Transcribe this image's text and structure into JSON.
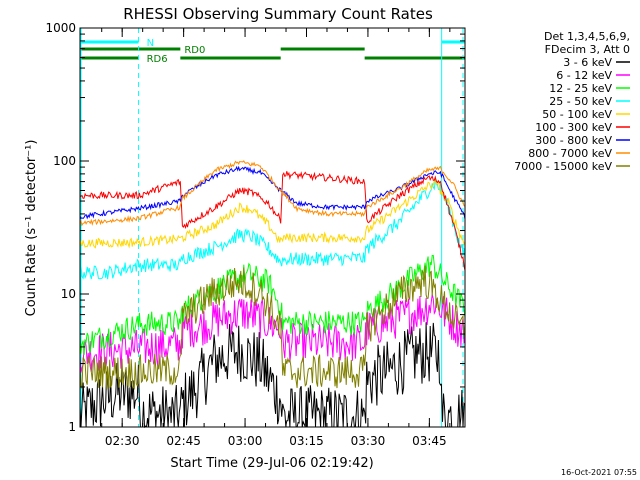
{
  "chart_data": {
    "type": "line",
    "title": "RHESSI Observing Summary Count Rates",
    "xlabel": "Start Time (29-Jul-06 02:19:42)",
    "ylabel": "Count Rate (s⁻¹ detector⁻¹)",
    "yscale": "log",
    "ylim": [
      1,
      1000
    ],
    "xlim_min": [
      0,
      94
    ],
    "y_ticks": [
      "1",
      "10",
      "100",
      "1000"
    ],
    "x_ticks": [
      {
        "min": 10.3,
        "label": "02:30"
      },
      {
        "min": 25.3,
        "label": "02:45"
      },
      {
        "min": 40.3,
        "label": "03:00"
      },
      {
        "min": 55.3,
        "label": "03:15"
      },
      {
        "min": 70.3,
        "label": "03:30"
      },
      {
        "min": 85.3,
        "label": "03:45"
      }
    ],
    "legend_header": [
      "Det 1,3,4,5,6,9,",
      "FDecim 3, Att 0"
    ],
    "night_lines_min": [
      0,
      88.3
    ],
    "saa_lines_min": [
      14.3,
      97.3
    ],
    "flags": [
      {
        "label": "N",
        "color": "#00ffff",
        "row": 1,
        "segments": [
          [
            0,
            14.3
          ],
          [
            88.3,
            97.3
          ]
        ]
      },
      {
        "label": "RD0",
        "color": "#008000",
        "row": 2,
        "segments": [
          [
            0,
            24.5
          ],
          [
            49,
            69.5
          ]
        ]
      },
      {
        "label": "RD6",
        "color": "#008000",
        "row": 3,
        "segments": [
          [
            0,
            14.3
          ],
          [
            24.5,
            49
          ],
          [
            69.5,
            97.3
          ]
        ]
      }
    ],
    "series": [
      {
        "name": "3 - 6 keV",
        "color": "#000000"
      },
      {
        "name": "6 - 12 keV",
        "color": "#ff00ff"
      },
      {
        "name": "12 - 25 keV",
        "color": "#00ff00"
      },
      {
        "name": "25 - 50 keV",
        "color": "#00ffff"
      },
      {
        "name": "50 - 100 keV",
        "color": "#ffd700"
      },
      {
        "name": "100 - 300 keV",
        "color": "#ff0000"
      },
      {
        "name": "300 - 800 keV",
        "color": "#0000ff"
      },
      {
        "name": "800 - 7000 keV",
        "color": "#ff8c00"
      },
      {
        "name": "7000 - 15000 keV",
        "color": "#808000"
      }
    ],
    "profiles": [
      [
        [
          0,
          1.2
        ],
        [
          4,
          1.5
        ],
        [
          9,
          1.8
        ],
        [
          14.3,
          1.8
        ],
        [
          15,
          1.3
        ],
        [
          22,
          1.2
        ],
        [
          24.5,
          1.2
        ],
        [
          25,
          1.5
        ],
        [
          28,
          1.9
        ],
        [
          33,
          3.2
        ],
        [
          39,
          3.8
        ],
        [
          44,
          3.0
        ],
        [
          49,
          1.6
        ],
        [
          49.5,
          1.2
        ],
        [
          60,
          1.2
        ],
        [
          69.5,
          1.2
        ],
        [
          70,
          2.2
        ],
        [
          76,
          2.7
        ],
        [
          82,
          3.5
        ],
        [
          85.5,
          3.6
        ],
        [
          88,
          3.5
        ],
        [
          88.3,
          1.2
        ],
        [
          97,
          1.2
        ]
      ],
      [
        [
          0,
          3.6
        ],
        [
          14.3,
          3.9
        ],
        [
          24.5,
          4.2
        ],
        [
          25,
          5.4
        ],
        [
          30,
          5.8
        ],
        [
          35,
          6.7
        ],
        [
          40,
          7.3
        ],
        [
          44,
          6.5
        ],
        [
          49,
          5.5
        ],
        [
          49.5,
          4.3
        ],
        [
          60,
          4.3
        ],
        [
          69.5,
          4.3
        ],
        [
          70,
          5.4
        ],
        [
          78,
          6.6
        ],
        [
          84,
          7.8
        ],
        [
          86.5,
          9.0
        ],
        [
          89,
          7.2
        ],
        [
          92,
          5.7
        ],
        [
          97,
          4.8
        ]
      ],
      [
        [
          0,
          4.2
        ],
        [
          14.3,
          5.9
        ],
        [
          24.5,
          6.1
        ],
        [
          25,
          7.5
        ],
        [
          32,
          10.5
        ],
        [
          38,
          13.0
        ],
        [
          41,
          14.0
        ],
        [
          46,
          12.2
        ],
        [
          49,
          8.0
        ],
        [
          49.5,
          6.1
        ],
        [
          60,
          6.1
        ],
        [
          69.5,
          6.1
        ],
        [
          70,
          7.5
        ],
        [
          76,
          10.0
        ],
        [
          82,
          14.0
        ],
        [
          86,
          17.0
        ],
        [
          89,
          12.5
        ],
        [
          93,
          8.5
        ],
        [
          97,
          6.6
        ]
      ],
      [
        [
          0,
          14.5
        ],
        [
          7,
          14.5
        ],
        [
          14.3,
          16.5
        ],
        [
          24.5,
          16.5
        ],
        [
          25,
          18.5
        ],
        [
          33,
          22.5
        ],
        [
          39,
          28.0
        ],
        [
          42,
          27.0
        ],
        [
          46,
          22.0
        ],
        [
          49,
          17.5
        ],
        [
          49.5,
          18.2
        ],
        [
          60,
          18.4
        ],
        [
          69.5,
          18.6
        ],
        [
          70,
          22.0
        ],
        [
          78,
          35.0
        ],
        [
          85,
          60.0
        ],
        [
          87,
          70.0
        ],
        [
          90,
          45.0
        ],
        [
          93,
          22.0
        ],
        [
          97,
          12.5
        ]
      ],
      [
        [
          0,
          24.0
        ],
        [
          14.3,
          24.5
        ],
        [
          24.5,
          26.0
        ],
        [
          25,
          26.5
        ],
        [
          33,
          33.0
        ],
        [
          39,
          45.0
        ],
        [
          42,
          43.0
        ],
        [
          46,
          33.0
        ],
        [
          49,
          24.5
        ],
        [
          49.5,
          26.5
        ],
        [
          60,
          26.5
        ],
        [
          69.5,
          26.5
        ],
        [
          70,
          30.0
        ],
        [
          78,
          45.0
        ],
        [
          85,
          65.0
        ],
        [
          87,
          68.0
        ],
        [
          90,
          48.0
        ],
        [
          93,
          27.0
        ],
        [
          97,
          17.0
        ]
      ],
      [
        [
          0,
          55.0
        ],
        [
          14.3,
          55.0
        ],
        [
          24.5,
          70.0
        ],
        [
          25,
          32.0
        ],
        [
          33,
          45.0
        ],
        [
          39,
          60.0
        ],
        [
          42,
          58.0
        ],
        [
          46,
          48.0
        ],
        [
          49,
          36.0
        ],
        [
          49.5,
          80.0
        ],
        [
          60,
          75.0
        ],
        [
          69.5,
          70.0
        ],
        [
          70,
          35.0
        ],
        [
          78,
          55.0
        ],
        [
          85,
          75.0
        ],
        [
          88,
          70.0
        ],
        [
          91,
          35.0
        ],
        [
          94,
          16.0
        ],
        [
          97,
          10.0
        ]
      ],
      [
        [
          0,
          38.0
        ],
        [
          14.3,
          44.0
        ],
        [
          24.5,
          50.0
        ],
        [
          25,
          55.0
        ],
        [
          33,
          78.0
        ],
        [
          39,
          88.0
        ],
        [
          44,
          82.0
        ],
        [
          49,
          60.0
        ],
        [
          53,
          48.0
        ],
        [
          60,
          45.0
        ],
        [
          69.5,
          45.0
        ],
        [
          70,
          50.0
        ],
        [
          78,
          62.0
        ],
        [
          85,
          80.0
        ],
        [
          88,
          82.0
        ],
        [
          91,
          55.0
        ],
        [
          94,
          38.0
        ],
        [
          97,
          28.0
        ]
      ],
      [
        [
          0,
          34.0
        ],
        [
          14.3,
          37.0
        ],
        [
          24.5,
          45.0
        ],
        [
          25,
          52.0
        ],
        [
          33,
          85.0
        ],
        [
          39,
          98.0
        ],
        [
          44,
          92.0
        ],
        [
          49,
          60.0
        ],
        [
          53,
          44.0
        ],
        [
          60,
          40.0
        ],
        [
          69.5,
          40.0
        ],
        [
          70,
          45.0
        ],
        [
          78,
          62.0
        ],
        [
          85,
          85.0
        ],
        [
          88,
          88.0
        ],
        [
          91,
          68.0
        ],
        [
          94,
          45.0
        ],
        [
          97,
          34.0
        ]
      ],
      [
        [
          0,
          2.6
        ],
        [
          14.3,
          2.6
        ],
        [
          24.5,
          2.7
        ],
        [
          25,
          6.5
        ],
        [
          32,
          10.0
        ],
        [
          39,
          12.5
        ],
        [
          44,
          10.5
        ],
        [
          49,
          5.5
        ],
        [
          49.5,
          2.6
        ],
        [
          60,
          2.6
        ],
        [
          69.5,
          2.6
        ],
        [
          70,
          5.5
        ],
        [
          78,
          10.0
        ],
        [
          84,
          13.0
        ],
        [
          87,
          10.0
        ],
        [
          90,
          7.5
        ],
        [
          93,
          5.5
        ],
        [
          97,
          5.8
        ]
      ]
    ],
    "footer_timestamp": "16-Oct-2021 07:55"
  }
}
